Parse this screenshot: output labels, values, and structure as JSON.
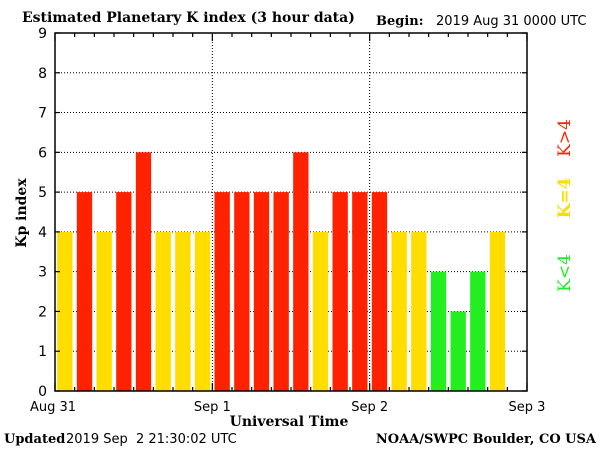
{
  "header": {
    "title": "Estimated Planetary K index (3 hour data)",
    "begin_label": "Begin:",
    "begin_value": "2019 Aug 31 0000 UTC"
  },
  "footer": {
    "updated_label": "Updated",
    "updated_value": "2019 Sep  2 21:30:02 UTC",
    "credit": "NOAA/SWPC Boulder, CO USA"
  },
  "legend": {
    "high": "K>4",
    "mid": "K=4",
    "low": "K<4"
  },
  "colors": {
    "k_gt4": "#ff2200",
    "k_eq4": "#ffdd00",
    "k_lt4": "#22ee22",
    "axis": "#000000",
    "grid": "#000000"
  },
  "chart_data": {
    "type": "bar",
    "title": "Estimated Planetary K index (3 hour data)",
    "xlabel": "Universal Time",
    "ylabel": "Kp index",
    "ylim": [
      0,
      9
    ],
    "yticks": [
      "0",
      "1",
      "2",
      "3",
      "4",
      "5",
      "6",
      "7",
      "8",
      "9"
    ],
    "x_tick_labels": [
      "Aug 31",
      "Sep 1",
      "Sep 2",
      "Sep 3"
    ],
    "interval": "3 hour",
    "x": [
      "Aug 31 00",
      "Aug 31 03",
      "Aug 31 06",
      "Aug 31 09",
      "Aug 31 12",
      "Aug 31 15",
      "Aug 31 18",
      "Aug 31 21",
      "Sep 1 00",
      "Sep 1 03",
      "Sep 1 06",
      "Sep 1 09",
      "Sep 1 12",
      "Sep 1 15",
      "Sep 1 18",
      "Sep 1 21",
      "Sep 2 00",
      "Sep 2 03",
      "Sep 2 06",
      "Sep 2 09",
      "Sep 2 12",
      "Sep 2 15",
      "Sep 2 18"
    ],
    "values": [
      4,
      5,
      4,
      5,
      6,
      4,
      4,
      4,
      5,
      5,
      5,
      5,
      6,
      4,
      5,
      5,
      5,
      4,
      4,
      3,
      2,
      3,
      4
    ],
    "grid": true,
    "legend_position": "right"
  }
}
